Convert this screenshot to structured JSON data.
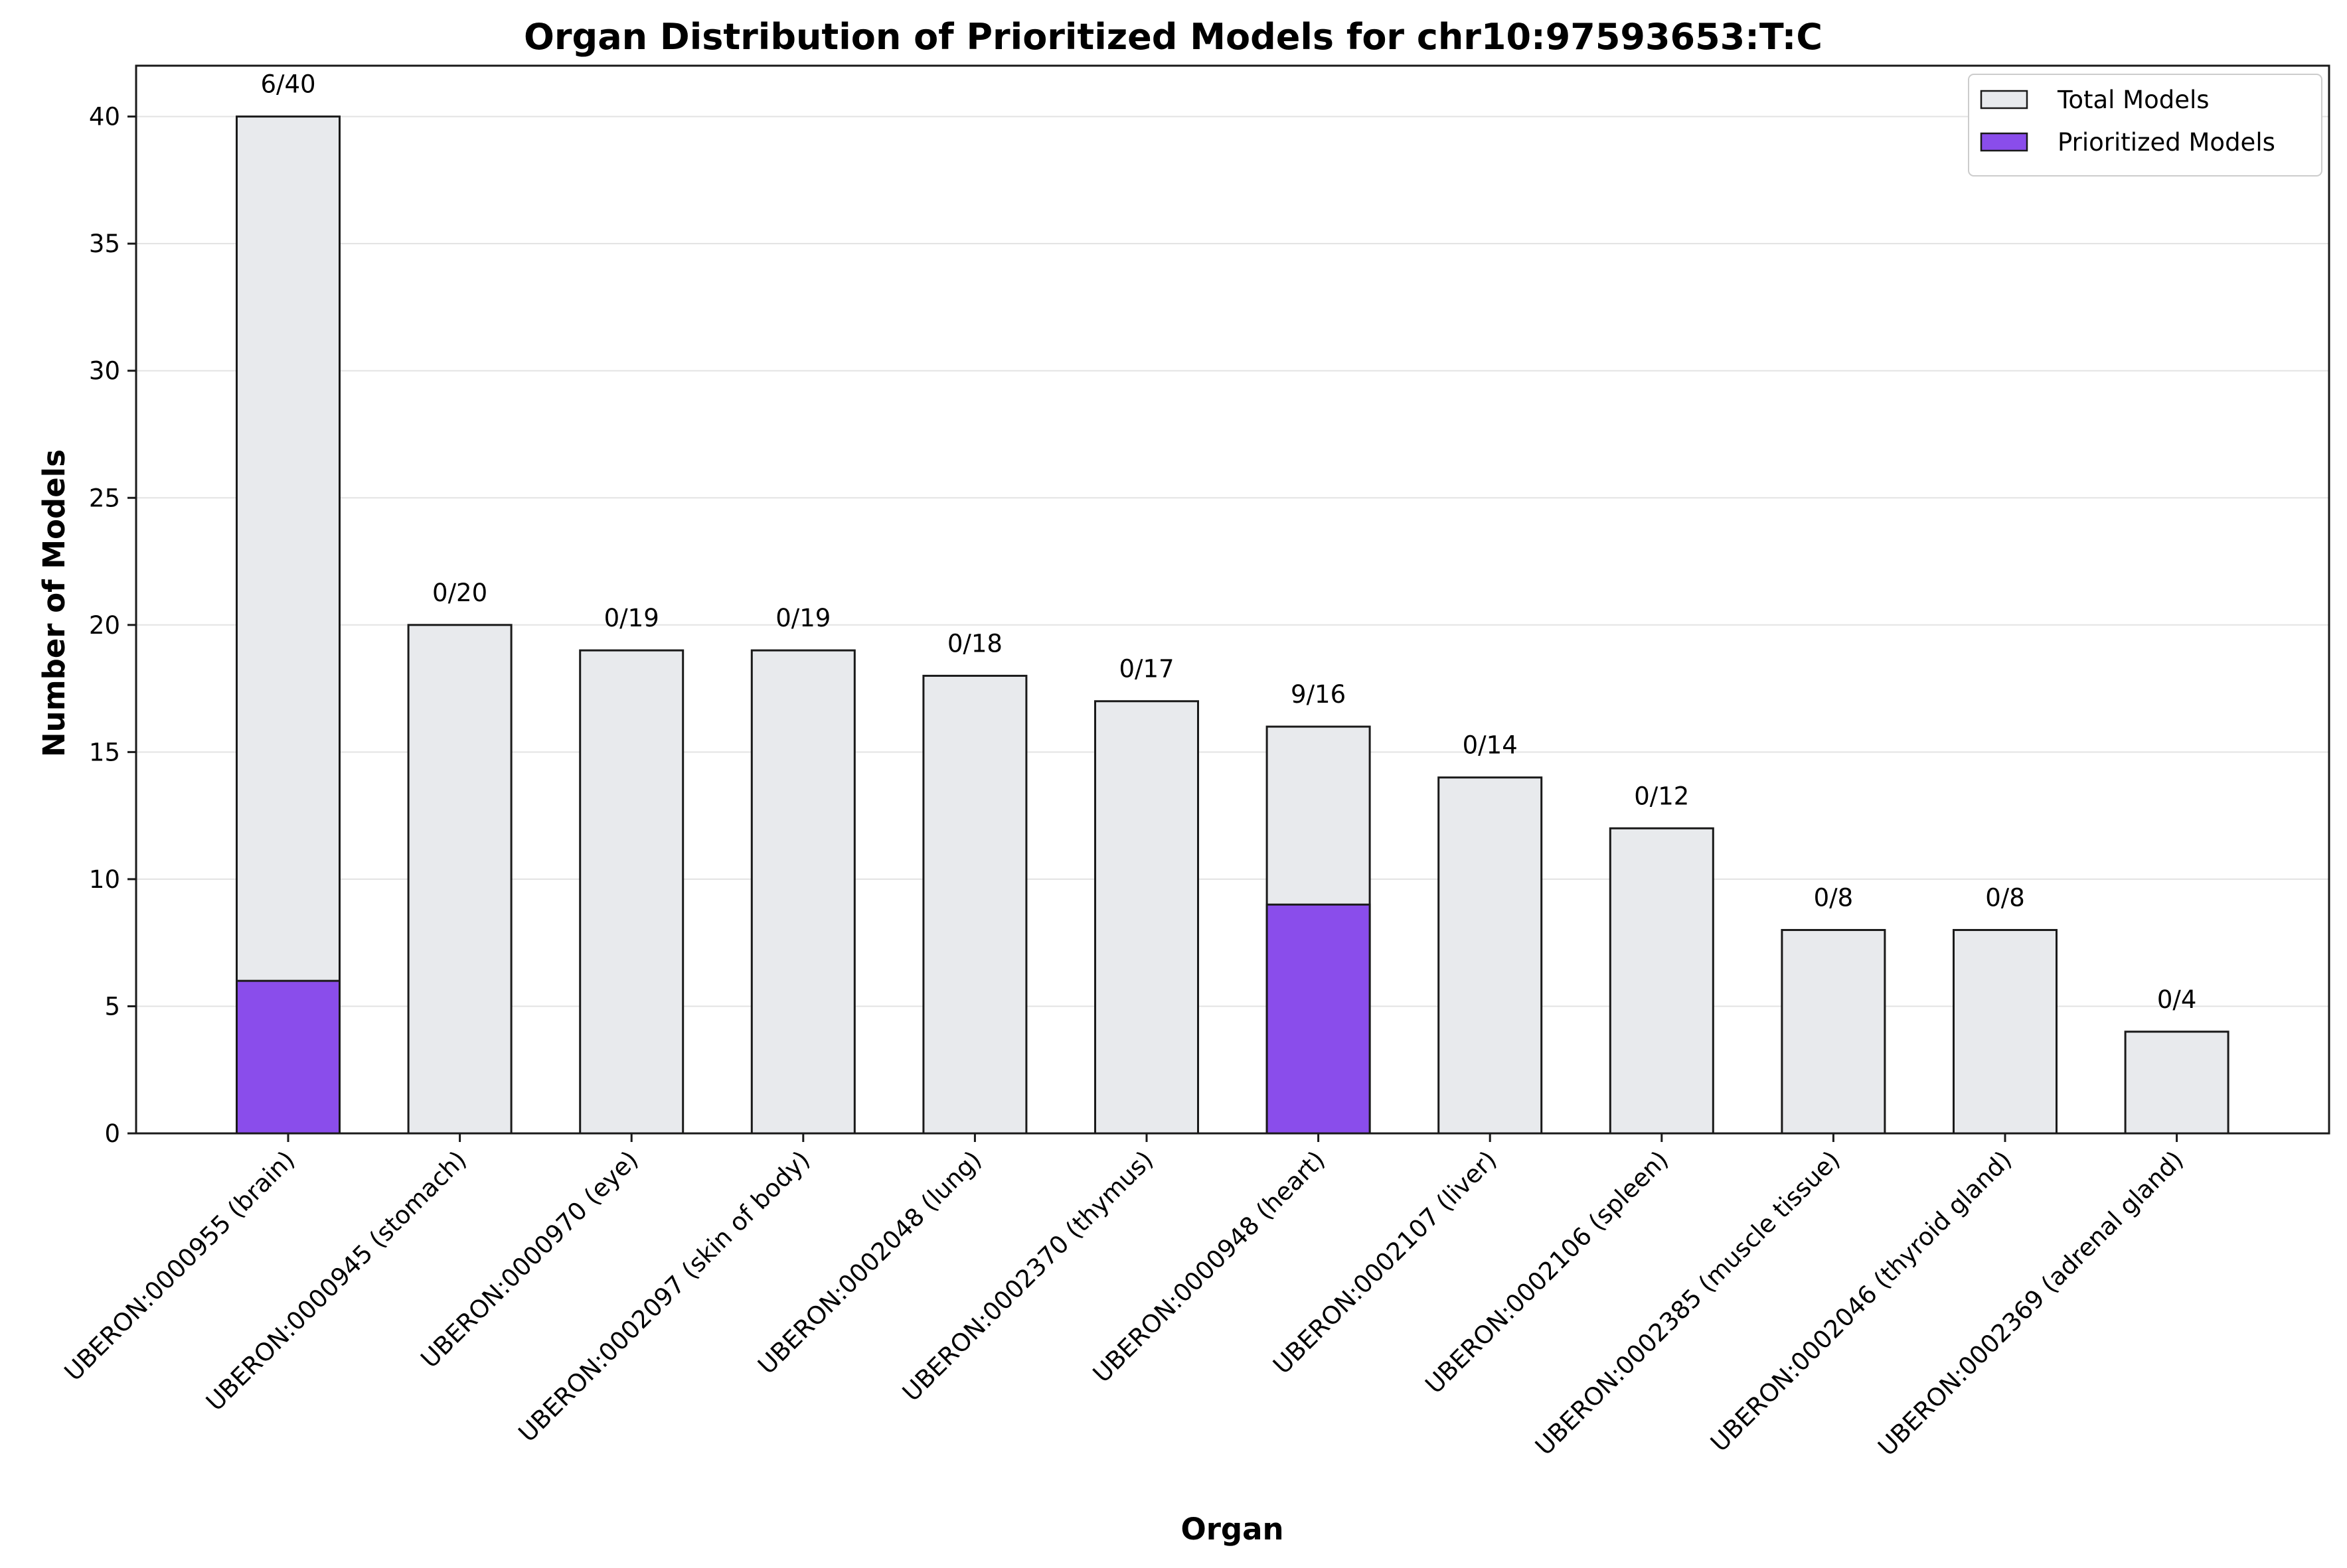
{
  "colors": {
    "total": "#e8eaed",
    "prioritized": "#8a4deb",
    "edge": "#1a1a1a",
    "grid": "#e3e3e3"
  },
  "chart_data": {
    "type": "bar",
    "stacked": "overlay",
    "title": "Organ Distribution of Prioritized Models for chr10:97593653:T:C",
    "xlabel": "Organ",
    "ylabel": "Number of Models",
    "ylim": [
      0,
      42
    ],
    "yticks": [
      0,
      5,
      10,
      15,
      20,
      25,
      30,
      35,
      40
    ],
    "grid": "y",
    "legend_position": "top-right",
    "categories": [
      "UBERON:0000955 (brain)",
      "UBERON:0000945 (stomach)",
      "UBERON:0000970 (eye)",
      "UBERON:0002097 (skin of body)",
      "UBERON:0002048 (lung)",
      "UBERON:0002370 (thymus)",
      "UBERON:0000948 (heart)",
      "UBERON:0002107 (liver)",
      "UBERON:0002106 (spleen)",
      "UBERON:0002385 (muscle tissue)",
      "UBERON:0002046 (thyroid gland)",
      "UBERON:0002369 (adrenal gland)"
    ],
    "series": [
      {
        "name": "Total Models",
        "values": [
          40,
          20,
          19,
          19,
          18,
          17,
          16,
          14,
          12,
          8,
          8,
          4
        ]
      },
      {
        "name": "Prioritized Models",
        "values": [
          6,
          0,
          0,
          0,
          0,
          0,
          9,
          0,
          0,
          0,
          0,
          0
        ]
      }
    ],
    "data_labels": [
      "6/40",
      "0/20",
      "0/19",
      "0/19",
      "0/18",
      "0/17",
      "9/16",
      "0/14",
      "0/12",
      "0/8",
      "0/8",
      "0/4"
    ]
  }
}
